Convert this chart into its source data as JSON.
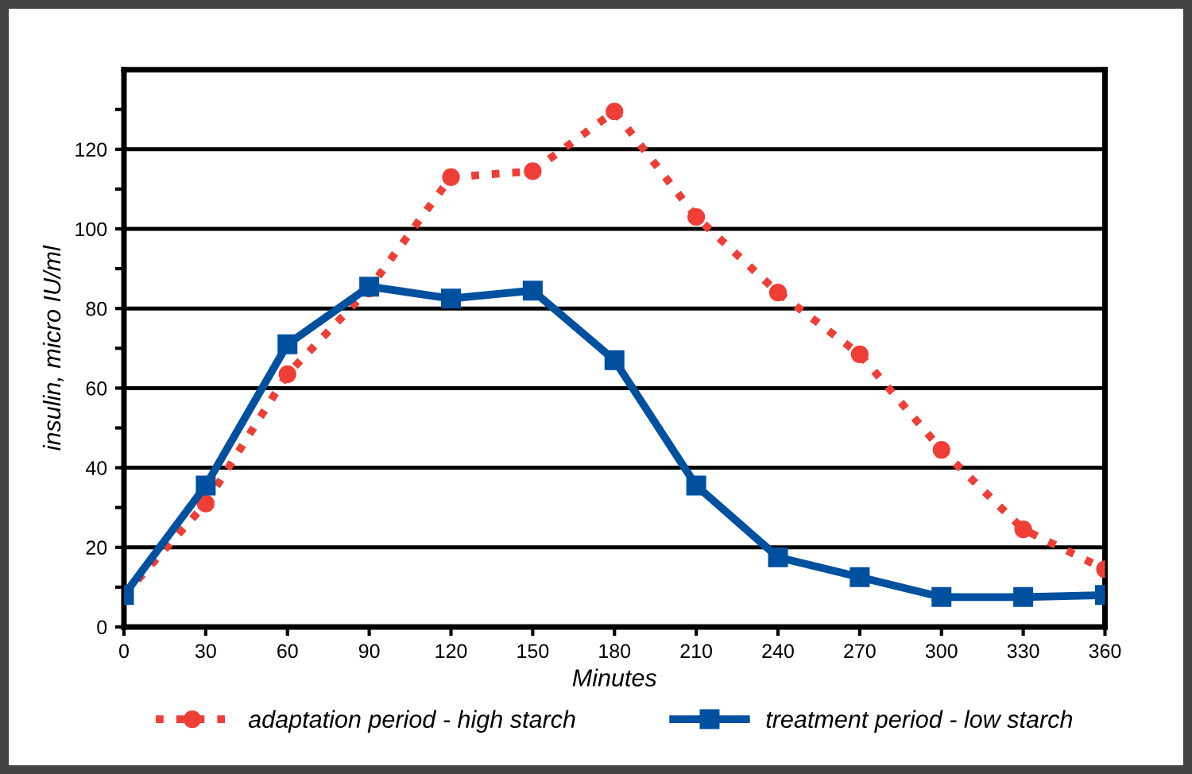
{
  "chart_data": {
    "type": "line",
    "xlabel": "Minutes",
    "ylabel": "insulin, micro IU/ml",
    "x": [
      0,
      30,
      60,
      90,
      120,
      150,
      180,
      210,
      240,
      270,
      300,
      330,
      360
    ],
    "series": [
      {
        "name": "adaptation period - high starch",
        "color": "#ee3e36",
        "marker": "circle",
        "line_style": "dotted",
        "values": [
          8,
          31,
          63.5,
          85,
          113,
          114.5,
          129.5,
          103,
          84,
          68.5,
          44.5,
          24.5,
          14.5
        ]
      },
      {
        "name": "treatment period - low starch",
        "color": "#0050a0",
        "marker": "square",
        "line_style": "solid",
        "values": [
          8,
          35.5,
          71,
          85.5,
          82.5,
          84.5,
          67,
          35.5,
          17.5,
          12.5,
          7.5,
          7.5,
          8
        ]
      }
    ],
    "xlim": [
      0,
      360
    ],
    "xticks": [
      0,
      30,
      60,
      90,
      120,
      150,
      180,
      210,
      240,
      270,
      300,
      330,
      360
    ],
    "ylim": [
      0,
      140
    ],
    "yticks": [
      0,
      {
        "value": 10,
        "label": null
      },
      20,
      {
        "value": 30,
        "label": null
      },
      40,
      {
        "value": 50,
        "label": null
      },
      60,
      {
        "value": 70,
        "label": null
      },
      80,
      {
        "value": 90,
        "label": null
      },
      100,
      {
        "value": 110,
        "label": null
      },
      120,
      {
        "value": 130,
        "label": null
      }
    ],
    "grid": "y",
    "legend": "bottom"
  }
}
